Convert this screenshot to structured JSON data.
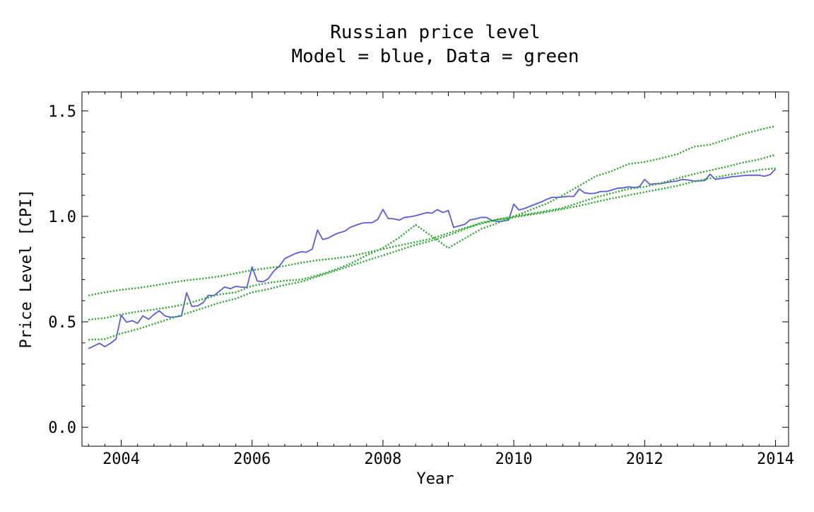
{
  "chart_data": {
    "type": "line",
    "title": "Russian price level",
    "subtitle": "Model = blue, Data = green",
    "xlabel": "Year",
    "ylabel": "Price Level [CPI]",
    "xlim": [
      2003.4,
      2014.2
    ],
    "ylim": [
      -0.09,
      1.59
    ],
    "x_ticks": [
      2004,
      2006,
      2008,
      2010,
      2012,
      2014
    ],
    "x_tick_labels": [
      "2004",
      "2006",
      "2008",
      "2010",
      "2012",
      "2014"
    ],
    "y_ticks": [
      0.0,
      0.5,
      1.0,
      1.5
    ],
    "y_tick_labels": [
      "0.0",
      "0.5",
      "1.0",
      "1.5"
    ],
    "grid": false,
    "colors": {
      "model": "#5a5ae6",
      "data": "#22aa22",
      "axis": "#000000"
    },
    "series": [
      {
        "role": "model",
        "style": "solid",
        "points": [
          [
            2003.5,
            0.373
          ],
          [
            2003.58,
            0.385
          ],
          [
            2003.67,
            0.398
          ],
          [
            2003.75,
            0.382
          ],
          [
            2003.83,
            0.397
          ],
          [
            2003.92,
            0.418
          ],
          [
            2004.0,
            0.532
          ],
          [
            2004.08,
            0.498
          ],
          [
            2004.17,
            0.505
          ],
          [
            2004.25,
            0.493
          ],
          [
            2004.33,
            0.528
          ],
          [
            2004.42,
            0.512
          ],
          [
            2004.5,
            0.535
          ],
          [
            2004.58,
            0.552
          ],
          [
            2004.67,
            0.528
          ],
          [
            2004.75,
            0.522
          ],
          [
            2004.83,
            0.523
          ],
          [
            2004.92,
            0.528
          ],
          [
            2005.0,
            0.638
          ],
          [
            2005.08,
            0.573
          ],
          [
            2005.17,
            0.576
          ],
          [
            2005.25,
            0.59
          ],
          [
            2005.33,
            0.625
          ],
          [
            2005.42,
            0.625
          ],
          [
            2005.5,
            0.645
          ],
          [
            2005.58,
            0.665
          ],
          [
            2005.67,
            0.657
          ],
          [
            2005.75,
            0.668
          ],
          [
            2005.83,
            0.665
          ],
          [
            2005.92,
            0.663
          ],
          [
            2006.0,
            0.76
          ],
          [
            2006.08,
            0.693
          ],
          [
            2006.17,
            0.69
          ],
          [
            2006.25,
            0.705
          ],
          [
            2006.33,
            0.74
          ],
          [
            2006.42,
            0.765
          ],
          [
            2006.5,
            0.8
          ],
          [
            2006.58,
            0.812
          ],
          [
            2006.67,
            0.825
          ],
          [
            2006.75,
            0.832
          ],
          [
            2006.83,
            0.83
          ],
          [
            2006.92,
            0.845
          ],
          [
            2007.0,
            0.935
          ],
          [
            2007.08,
            0.89
          ],
          [
            2007.17,
            0.898
          ],
          [
            2007.25,
            0.912
          ],
          [
            2007.33,
            0.922
          ],
          [
            2007.42,
            0.93
          ],
          [
            2007.5,
            0.948
          ],
          [
            2007.58,
            0.957
          ],
          [
            2007.67,
            0.967
          ],
          [
            2007.75,
            0.97
          ],
          [
            2007.83,
            0.97
          ],
          [
            2007.92,
            0.985
          ],
          [
            2008.0,
            1.033
          ],
          [
            2008.08,
            0.99
          ],
          [
            2008.17,
            0.988
          ],
          [
            2008.25,
            0.982
          ],
          [
            2008.33,
            0.995
          ],
          [
            2008.42,
            0.998
          ],
          [
            2008.5,
            1.003
          ],
          [
            2008.58,
            1.01
          ],
          [
            2008.67,
            1.018
          ],
          [
            2008.75,
            1.015
          ],
          [
            2008.83,
            1.032
          ],
          [
            2008.92,
            1.018
          ],
          [
            2009.0,
            1.028
          ],
          [
            2009.08,
            0.948
          ],
          [
            2009.17,
            0.955
          ],
          [
            2009.25,
            0.962
          ],
          [
            2009.33,
            0.983
          ],
          [
            2009.42,
            0.988
          ],
          [
            2009.5,
            0.995
          ],
          [
            2009.58,
            0.995
          ],
          [
            2009.67,
            0.98
          ],
          [
            2009.75,
            0.975
          ],
          [
            2009.83,
            0.978
          ],
          [
            2009.92,
            0.982
          ],
          [
            2010.0,
            1.058
          ],
          [
            2010.08,
            1.03
          ],
          [
            2010.17,
            1.038
          ],
          [
            2010.25,
            1.048
          ],
          [
            2010.33,
            1.058
          ],
          [
            2010.42,
            1.068
          ],
          [
            2010.5,
            1.08
          ],
          [
            2010.58,
            1.09
          ],
          [
            2010.67,
            1.09
          ],
          [
            2010.75,
            1.092
          ],
          [
            2010.83,
            1.095
          ],
          [
            2010.92,
            1.095
          ],
          [
            2011.0,
            1.13
          ],
          [
            2011.08,
            1.112
          ],
          [
            2011.17,
            1.108
          ],
          [
            2011.25,
            1.11
          ],
          [
            2011.33,
            1.118
          ],
          [
            2011.42,
            1.118
          ],
          [
            2011.5,
            1.125
          ],
          [
            2011.58,
            1.133
          ],
          [
            2011.67,
            1.135
          ],
          [
            2011.75,
            1.14
          ],
          [
            2011.83,
            1.137
          ],
          [
            2011.92,
            1.14
          ],
          [
            2012.0,
            1.175
          ],
          [
            2012.08,
            1.152
          ],
          [
            2012.17,
            1.155
          ],
          [
            2012.25,
            1.155
          ],
          [
            2012.33,
            1.16
          ],
          [
            2012.42,
            1.165
          ],
          [
            2012.5,
            1.168
          ],
          [
            2012.58,
            1.175
          ],
          [
            2012.67,
            1.172
          ],
          [
            2012.75,
            1.168
          ],
          [
            2012.83,
            1.168
          ],
          [
            2012.92,
            1.17
          ],
          [
            2013.0,
            1.2
          ],
          [
            2013.08,
            1.175
          ],
          [
            2013.17,
            1.18
          ],
          [
            2013.25,
            1.183
          ],
          [
            2013.33,
            1.188
          ],
          [
            2013.42,
            1.19
          ],
          [
            2013.5,
            1.193
          ],
          [
            2013.58,
            1.195
          ],
          [
            2013.67,
            1.195
          ],
          [
            2013.75,
            1.195
          ],
          [
            2013.83,
            1.19
          ],
          [
            2013.92,
            1.198
          ],
          [
            2014.0,
            1.225
          ]
        ]
      },
      {
        "role": "data",
        "style": "dotted",
        "points": [
          [
            2003.5,
            0.625
          ],
          [
            2003.75,
            0.64
          ],
          [
            2004.0,
            0.652
          ],
          [
            2004.25,
            0.66
          ],
          [
            2004.5,
            0.672
          ],
          [
            2004.75,
            0.685
          ],
          [
            2005.0,
            0.697
          ],
          [
            2005.25,
            0.705
          ],
          [
            2005.5,
            0.715
          ],
          [
            2005.75,
            0.73
          ],
          [
            2006.0,
            0.745
          ],
          [
            2006.25,
            0.755
          ],
          [
            2006.5,
            0.765
          ],
          [
            2006.75,
            0.78
          ],
          [
            2007.0,
            0.792
          ],
          [
            2007.25,
            0.8
          ],
          [
            2007.5,
            0.81
          ],
          [
            2007.75,
            0.828
          ],
          [
            2008.0,
            0.845
          ],
          [
            2008.25,
            0.862
          ],
          [
            2008.5,
            0.878
          ],
          [
            2008.75,
            0.895
          ],
          [
            2009.0,
            0.92
          ],
          [
            2009.25,
            0.945
          ],
          [
            2009.5,
            0.965
          ],
          [
            2009.75,
            0.985
          ],
          [
            2010.0,
            1.0
          ],
          [
            2010.25,
            1.03
          ],
          [
            2010.5,
            1.06
          ],
          [
            2010.75,
            1.1
          ],
          [
            2011.0,
            1.145
          ],
          [
            2011.25,
            1.19
          ],
          [
            2011.5,
            1.215
          ],
          [
            2011.75,
            1.248
          ],
          [
            2012.0,
            1.258
          ],
          [
            2012.25,
            1.275
          ],
          [
            2012.5,
            1.295
          ],
          [
            2012.75,
            1.33
          ],
          [
            2013.0,
            1.34
          ],
          [
            2013.25,
            1.365
          ],
          [
            2013.5,
            1.39
          ],
          [
            2013.75,
            1.41
          ],
          [
            2014.0,
            1.428
          ]
        ]
      },
      {
        "role": "data",
        "style": "dotted",
        "points": [
          [
            2003.5,
            0.51
          ],
          [
            2003.75,
            0.518
          ],
          [
            2004.0,
            0.535
          ],
          [
            2004.25,
            0.548
          ],
          [
            2004.5,
            0.558
          ],
          [
            2004.75,
            0.57
          ],
          [
            2005.0,
            0.585
          ],
          [
            2005.25,
            0.608
          ],
          [
            2005.5,
            0.63
          ],
          [
            2005.75,
            0.64
          ],
          [
            2006.0,
            0.67
          ],
          [
            2006.25,
            0.685
          ],
          [
            2006.5,
            0.695
          ],
          [
            2006.75,
            0.7
          ],
          [
            2007.0,
            0.72
          ],
          [
            2007.25,
            0.745
          ],
          [
            2007.5,
            0.775
          ],
          [
            2007.75,
            0.815
          ],
          [
            2008.0,
            0.85
          ],
          [
            2008.25,
            0.9
          ],
          [
            2008.5,
            0.96
          ],
          [
            2008.75,
            0.905
          ],
          [
            2009.0,
            0.85
          ],
          [
            2009.25,
            0.895
          ],
          [
            2009.5,
            0.94
          ],
          [
            2009.75,
            0.968
          ],
          [
            2010.0,
            1.0
          ],
          [
            2010.25,
            1.012
          ],
          [
            2010.5,
            1.025
          ],
          [
            2010.75,
            1.04
          ],
          [
            2011.0,
            1.065
          ],
          [
            2011.25,
            1.09
          ],
          [
            2011.5,
            1.11
          ],
          [
            2011.75,
            1.13
          ],
          [
            2012.0,
            1.14
          ],
          [
            2012.25,
            1.158
          ],
          [
            2012.5,
            1.18
          ],
          [
            2012.75,
            1.2
          ],
          [
            2013.0,
            1.218
          ],
          [
            2013.25,
            1.235
          ],
          [
            2013.5,
            1.255
          ],
          [
            2013.75,
            1.27
          ],
          [
            2014.0,
            1.292
          ]
        ]
      },
      {
        "role": "data",
        "style": "dotted",
        "points": [
          [
            2003.5,
            0.415
          ],
          [
            2003.75,
            0.418
          ],
          [
            2004.0,
            0.445
          ],
          [
            2004.25,
            0.465
          ],
          [
            2004.5,
            0.49
          ],
          [
            2004.75,
            0.515
          ],
          [
            2005.0,
            0.54
          ],
          [
            2005.25,
            0.565
          ],
          [
            2005.5,
            0.59
          ],
          [
            2005.75,
            0.61
          ],
          [
            2006.0,
            0.64
          ],
          [
            2006.25,
            0.655
          ],
          [
            2006.5,
            0.675
          ],
          [
            2006.75,
            0.69
          ],
          [
            2007.0,
            0.715
          ],
          [
            2007.25,
            0.74
          ],
          [
            2007.5,
            0.765
          ],
          [
            2007.75,
            0.79
          ],
          [
            2008.0,
            0.815
          ],
          [
            2008.25,
            0.84
          ],
          [
            2008.5,
            0.865
          ],
          [
            2008.75,
            0.885
          ],
          [
            2009.0,
            0.91
          ],
          [
            2009.25,
            0.94
          ],
          [
            2009.5,
            0.97
          ],
          [
            2009.75,
            0.985
          ],
          [
            2010.0,
            0.995
          ],
          [
            2010.25,
            1.008
          ],
          [
            2010.5,
            1.02
          ],
          [
            2010.75,
            1.035
          ],
          [
            2011.0,
            1.05
          ],
          [
            2011.25,
            1.068
          ],
          [
            2011.5,
            1.085
          ],
          [
            2011.75,
            1.1
          ],
          [
            2012.0,
            1.115
          ],
          [
            2012.25,
            1.13
          ],
          [
            2012.5,
            1.145
          ],
          [
            2012.75,
            1.165
          ],
          [
            2013.0,
            1.18
          ],
          [
            2013.25,
            1.195
          ],
          [
            2013.5,
            1.208
          ],
          [
            2013.75,
            1.22
          ],
          [
            2014.0,
            1.228
          ]
        ]
      }
    ]
  }
}
